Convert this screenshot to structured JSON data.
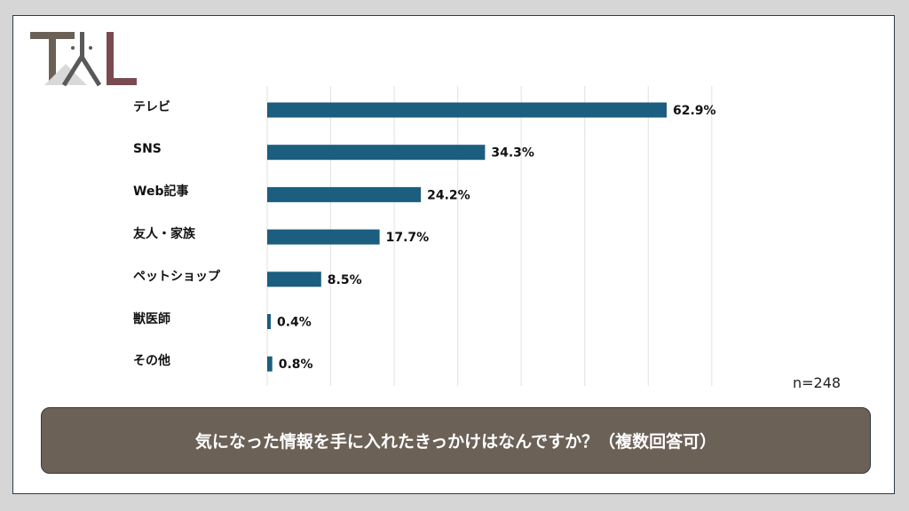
{
  "logo": {
    "text": "TAL",
    "colors": {
      "t": "#6b6157",
      "a": "#595959",
      "l": "#7a4a50"
    }
  },
  "chart_data": {
    "type": "bar",
    "orientation": "horizontal",
    "categories": [
      "テレビ",
      "SNS",
      "Web記事",
      "友人・家族",
      "ペットショップ",
      "獣医師",
      "その他"
    ],
    "values": [
      62.9,
      34.3,
      24.2,
      17.7,
      8.5,
      0.4,
      0.8
    ],
    "labels": [
      "62.9%",
      "34.3%",
      "24.2%",
      "17.7%",
      "8.5%",
      "0.4%",
      "0.8%"
    ],
    "xlim": [
      0,
      70
    ],
    "grid": true,
    "bar_color": "#1b5e80",
    "note": "n=248"
  },
  "question": "気になった情報を手に入れたきっかけはなんですか？（複数回答可）"
}
